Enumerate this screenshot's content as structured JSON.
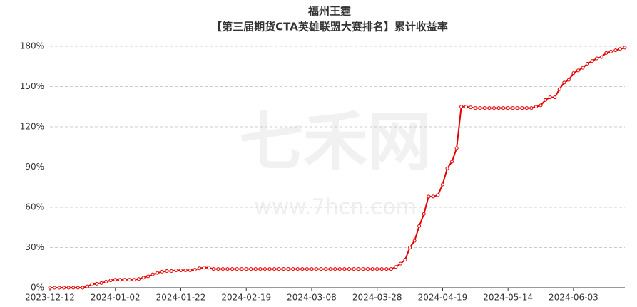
{
  "chart_data": {
    "type": "line",
    "title": "福州王霆",
    "subtitle": "【第三届期货CTA英雄联盟大赛排名】累计收益率",
    "watermark": [
      "七禾网",
      "www.7hcn.com"
    ],
    "categories": [
      "2023-12-12",
      null,
      null,
      null,
      null,
      null,
      null,
      null,
      null,
      null,
      null,
      null,
      null,
      null,
      "2024-01-02",
      null,
      null,
      null,
      null,
      null,
      null,
      null,
      null,
      null,
      null,
      null,
      null,
      null,
      "2024-01-22",
      null,
      null,
      null,
      null,
      null,
      null,
      null,
      null,
      null,
      null,
      null,
      null,
      null,
      "2024-02-19",
      null,
      null,
      null,
      null,
      null,
      null,
      null,
      null,
      null,
      null,
      null,
      null,
      null,
      "2024-03-08",
      null,
      null,
      null,
      null,
      null,
      null,
      null,
      null,
      null,
      null,
      null,
      null,
      null,
      "2024-03-28",
      null,
      null,
      null,
      null,
      null,
      null,
      null,
      null,
      null,
      null,
      null,
      null,
      null,
      "2024-04-19",
      null,
      null,
      null,
      null,
      null,
      null,
      null,
      null,
      null,
      null,
      null,
      null,
      null,
      "2024-05-14",
      null,
      null,
      null,
      null,
      null,
      null,
      null,
      null,
      null,
      null,
      null,
      null,
      null,
      "2024-06-03",
      null,
      null,
      null,
      null,
      null,
      null,
      null,
      null,
      null,
      null,
      null
    ],
    "series": [
      {
        "color": "#e60000",
        "values": [
          0,
          0,
          0,
          0,
          0,
          0,
          0,
          0,
          1,
          2.5,
          3,
          3.5,
          4.5,
          5.5,
          6,
          6,
          6,
          6,
          6,
          6.5,
          7.5,
          8.5,
          10,
          11,
          12,
          12.5,
          12.5,
          13,
          13,
          13,
          13,
          13.5,
          14.5,
          15,
          15,
          14,
          14,
          14,
          14,
          14,
          14,
          14,
          14,
          14,
          14,
          14,
          14,
          14,
          14,
          14,
          14,
          14,
          14,
          14,
          14,
          14,
          14,
          14,
          14,
          14,
          14,
          14,
          14,
          14,
          14,
          14,
          14,
          14,
          14,
          14,
          14,
          14,
          14,
          14,
          15.5,
          18,
          21,
          30,
          35,
          46,
          55,
          68,
          68,
          69,
          77,
          89,
          94,
          104,
          135,
          135,
          134.5,
          134,
          134,
          134,
          134,
          134,
          134,
          134,
          134,
          134,
          134,
          134,
          134,
          134,
          135,
          136,
          140,
          142,
          142,
          148,
          153,
          155,
          160,
          162,
          164,
          167,
          169,
          171,
          172,
          175,
          176,
          177,
          178,
          179
        ]
      }
    ],
    "ylim": [
      0,
      180
    ],
    "yticks": [
      {
        "value": 0,
        "label": "0%"
      },
      {
        "value": 30,
        "label": "30%"
      },
      {
        "value": 60,
        "label": "60%"
      },
      {
        "value": 90,
        "label": "90%"
      },
      {
        "value": 120,
        "label": "120%"
      },
      {
        "value": 150,
        "label": "150%"
      },
      {
        "value": 180,
        "label": "180%"
      }
    ],
    "grid": true
  }
}
